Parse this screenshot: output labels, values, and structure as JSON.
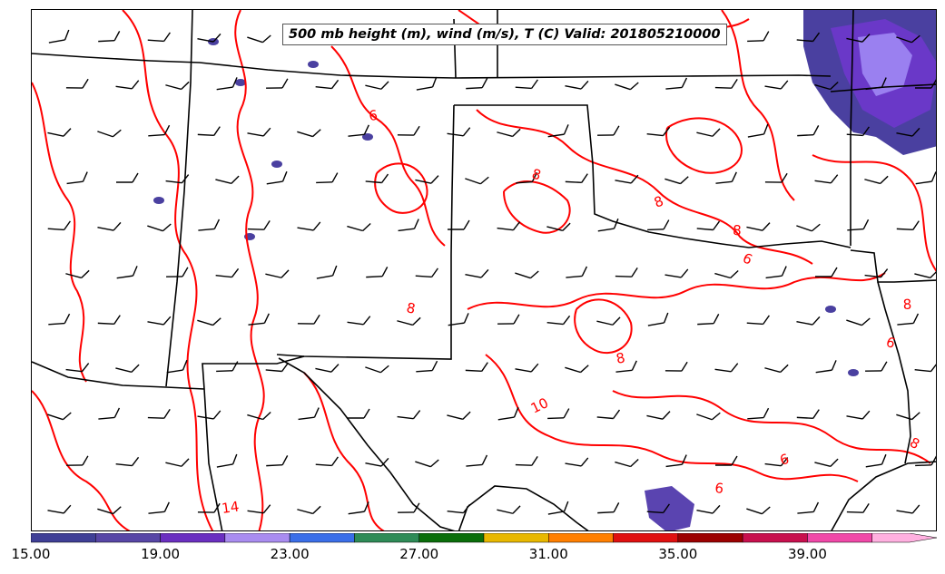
{
  "title": "500 mb height (m), wind (m/s), T (C) Valid: 201805210000",
  "colorbar": {
    "min": 15.0,
    "max": 43.0,
    "step": 2.0,
    "tick_labels": [
      "15.00",
      "19.00",
      "23.00",
      "27.00",
      "31.00",
      "35.00",
      "39.00"
    ],
    "colors": [
      "#3f3f96",
      "#5746a6",
      "#6a2fc0",
      "#a98cf0",
      "#3a6ee8",
      "#2e8b57",
      "#0a6e0a",
      "#e8b800",
      "#ff7f00",
      "#e01010",
      "#9c0000",
      "#c8104e",
      "#f048a8",
      "#ffb0e0"
    ]
  },
  "contour_labels": [
    "14",
    "6",
    "8",
    "8",
    "8",
    "6",
    "8",
    "8",
    "10",
    "8",
    "6",
    "6",
    "6",
    "8",
    "14"
  ],
  "colors": {
    "temperature_contour": "#ff0000",
    "borders": "#000000",
    "wind_barb": "#000000",
    "wind_fill": "#4a40a0"
  }
}
